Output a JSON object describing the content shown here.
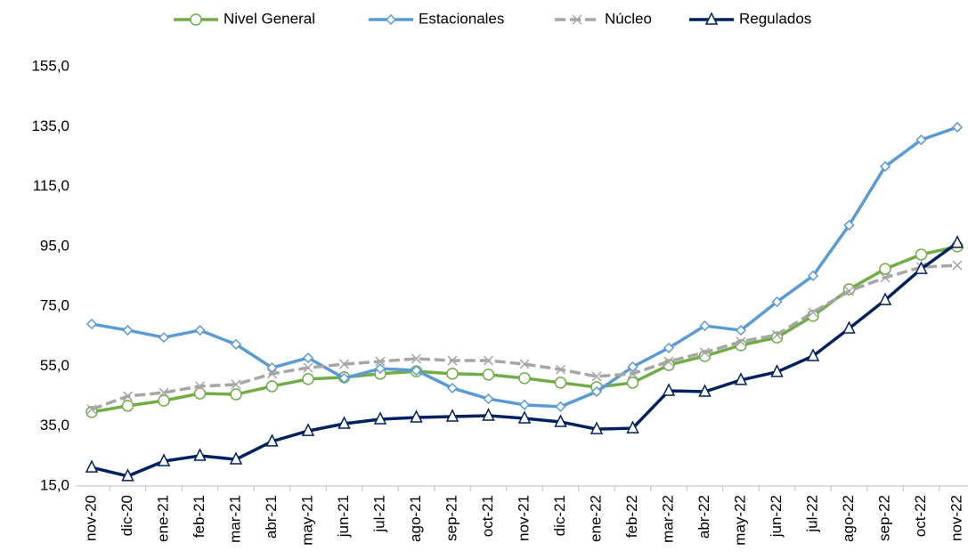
{
  "chart_data": {
    "type": "line",
    "categories": [
      "nov-20",
      "dic-20",
      "ene-21",
      "feb-21",
      "mar-21",
      "abr-21",
      "may-21",
      "jun-21",
      "jul-21",
      "ago-21",
      "sep-21",
      "oct-21",
      "nov-21",
      "dic-21",
      "ene-22",
      "feb-22",
      "mar-22",
      "abr-22",
      "may-22",
      "jun-22",
      "jul-22",
      "ago-22",
      "sep-22",
      "oct-22",
      "nov-22"
    ],
    "series": [
      {
        "name": "Nivel General",
        "color": "#70ad47",
        "marker": "circle",
        "values": [
          39.7,
          41.8,
          43.5,
          45.9,
          45.6,
          48.3,
          50.7,
          51.3,
          52.5,
          53.3,
          52.5,
          52.2,
          51.0,
          49.5,
          48.0,
          49.5,
          55.4,
          58.4,
          62.0,
          64.6,
          71.8,
          80.7,
          87.5,
          92.3,
          95.0
        ]
      },
      {
        "name": "Estacionales",
        "color": "#5b9bd5",
        "marker": "diamond",
        "values": [
          69.1,
          67.0,
          64.6,
          67.0,
          62.3,
          54.5,
          57.8,
          51.0,
          54.2,
          53.6,
          47.7,
          44.1,
          42.1,
          41.5,
          46.5,
          54.8,
          61.1,
          68.5,
          67.0,
          76.5,
          85.2,
          102.1,
          121.7,
          130.6,
          134.8
        ]
      },
      {
        "name": "Núcleo",
        "color": "#a6a6a6",
        "marker": "x",
        "values": [
          40.6,
          45.0,
          46.2,
          48.3,
          48.9,
          52.5,
          54.5,
          55.7,
          56.6,
          57.5,
          56.9,
          56.9,
          55.7,
          53.9,
          51.6,
          52.5,
          56.6,
          59.6,
          63.2,
          65.5,
          73.0,
          80.1,
          84.6,
          88.1,
          88.7
        ]
      },
      {
        "name": "Regulados",
        "color": "#002060",
        "marker": "triangle",
        "values": [
          21.2,
          18.3,
          23.3,
          25.1,
          23.9,
          29.9,
          33.4,
          35.8,
          37.3,
          37.9,
          38.2,
          38.5,
          37.6,
          36.4,
          34.0,
          34.3,
          46.8,
          46.5,
          50.4,
          53.1,
          58.4,
          67.6,
          77.1,
          87.5,
          96.2
        ]
      }
    ],
    "ylim": [
      15,
      155
    ],
    "yticks": [
      {
        "value": 15,
        "label": "15,0"
      },
      {
        "value": 35,
        "label": "35,0"
      },
      {
        "value": 55,
        "label": "55,0"
      },
      {
        "value": 75,
        "label": "75,0"
      },
      {
        "value": 95,
        "label": "95,0"
      },
      {
        "value": 115,
        "label": "115,0"
      },
      {
        "value": 135,
        "label": "135,0"
      },
      {
        "value": 155,
        "label": "155,0"
      }
    ],
    "grid": false,
    "legend": "top"
  }
}
